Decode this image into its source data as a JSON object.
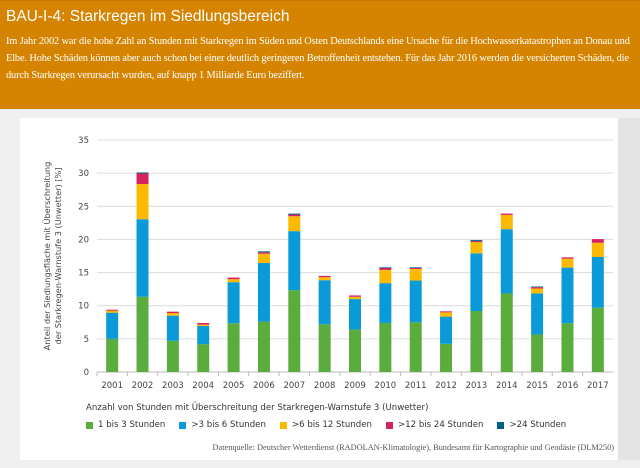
{
  "header": {
    "title": "BAU-I-4: Starkregen im Siedlungsbereich",
    "text": "Im Jahr 2002 war die hohe Zahl an Stunden mit Starkregen im Süden und Osten Deutschlands eine Ursache für die Hochwasserkatastrophen an Donau und Elbe. Hohe Schäden können aber auch schon bei einer deutlich geringeren Betroffenheit entstehen. Für das Jahr 2016 werden die versicherten Schäden, die durch Starkregen verursacht wurden, auf knapp 1 Milliarde Euro beziffert."
  },
  "colors": {
    "header": "#d48400"
  },
  "chart_data": {
    "type": "bar",
    "stacked": true,
    "xlabel": "Anzahl von Stunden mit Überschreitung der Starkregen-Warnstufe 3 (Unwetter)",
    "ylabel": "Anteil der Siedlungsfläche mit Überschreitung der Starkregen-Warnstufe 3 (Unwetter) [%]",
    "ylim": [
      0,
      35
    ],
    "yticks": [
      0,
      5,
      10,
      15,
      20,
      25,
      30,
      35
    ],
    "grid": true,
    "legend_placement": "bottom",
    "categories": [
      "2001",
      "2002",
      "2003",
      "2004",
      "2005",
      "2006",
      "2007",
      "2008",
      "2009",
      "2010",
      "2011",
      "2012",
      "2013",
      "2014",
      "2015",
      "2016",
      "2017"
    ],
    "series": [
      {
        "name": "1 bis 3 Stunden",
        "color": "#5aac3c",
        "values": [
          5.0,
          11.35,
          4.7,
          4.2,
          7.35,
          7.6,
          12.35,
          7.2,
          6.4,
          7.4,
          7.5,
          4.25,
          9.2,
          11.85,
          5.65,
          7.35,
          9.7
        ]
      },
      {
        "name": ">3 bis 6 Stunden",
        "color": "#0a9ad8",
        "values": [
          3.95,
          11.7,
          3.8,
          2.75,
          6.2,
          8.85,
          8.9,
          6.65,
          4.6,
          6.0,
          6.3,
          4.1,
          8.7,
          9.7,
          6.2,
          8.4,
          7.65
        ]
      },
      {
        "name": ">6 bis 12 Stunden",
        "color": "#fbb900",
        "values": [
          0.3,
          5.3,
          0.4,
          0.2,
          0.45,
          1.4,
          2.25,
          0.45,
          0.35,
          2.0,
          1.75,
          0.65,
          1.7,
          2.15,
          0.75,
          1.35,
          2.15
        ]
      },
      {
        "name": ">12 bis 24 Stunden",
        "color": "#d6225e",
        "values": [
          0.15,
          1.6,
          0.2,
          0.25,
          0.25,
          0.2,
          0.25,
          0.2,
          0.2,
          0.3,
          0.15,
          0.15,
          0.15,
          0.2,
          0.2,
          0.2,
          0.55
        ]
      },
      {
        "name": ">24 Stunden",
        "color": "#005f87",
        "values": [
          0,
          0.15,
          0,
          0,
          0,
          0.15,
          0.15,
          0,
          0,
          0.1,
          0.1,
          0,
          0.15,
          0,
          0.1,
          0,
          0
        ]
      }
    ],
    "source": "Datenquelle: Deutscher Wetterdienst (RADOLAN-Klimatologie), Bundesamt für Kartographie und Geodäsie (DLM250)"
  }
}
